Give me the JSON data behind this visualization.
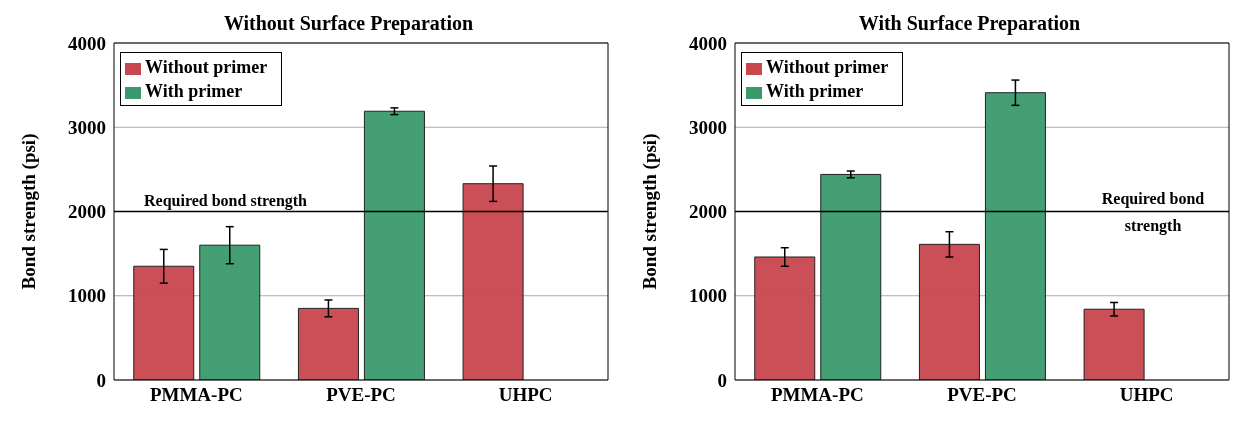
{
  "chart_data": [
    {
      "type": "bar",
      "title": "Without Surface Preparation",
      "ylabel": "Bond strength (psi)",
      "categories": [
        "PMMA-PC",
        "PVE-PC",
        "UHPC"
      ],
      "series": [
        {
          "name": "Without primer",
          "color": "#c8464e",
          "values": [
            1350,
            850,
            2330
          ],
          "errors": [
            200,
            100,
            210
          ]
        },
        {
          "name": "With primer",
          "color": "#3a9a6e",
          "values": [
            1600,
            3190,
            null
          ],
          "errors": [
            220,
            40,
            null
          ]
        }
      ],
      "ylim": [
        0,
        4000
      ],
      "yticks": [
        0,
        1000,
        2000,
        3000,
        4000
      ],
      "grid": "y",
      "legend": "top left",
      "ref_lines": [
        {
          "axis": "y",
          "value": 2000,
          "label": "Required bond strength",
          "color": "#000000"
        }
      ]
    },
    {
      "type": "bar",
      "title": "With Surface Preparation",
      "ylabel": "Bond strength (psi)",
      "categories": [
        "PMMA-PC",
        "PVE-PC",
        "UHPC"
      ],
      "series": [
        {
          "name": "Without primer",
          "color": "#c8464e",
          "values": [
            1460,
            1610,
            840
          ],
          "errors": [
            110,
            150,
            80
          ]
        },
        {
          "name": "With primer",
          "color": "#3a9a6e",
          "values": [
            2440,
            3410,
            null
          ],
          "errors": [
            40,
            150,
            null
          ]
        }
      ],
      "ylim": [
        0,
        4000
      ],
      "yticks": [
        0,
        1000,
        2000,
        3000,
        4000
      ],
      "grid": "y",
      "legend": "top left",
      "ref_lines": [
        {
          "axis": "y",
          "value": 2000,
          "label": "Required bond strength",
          "color": "#000000"
        }
      ]
    }
  ]
}
